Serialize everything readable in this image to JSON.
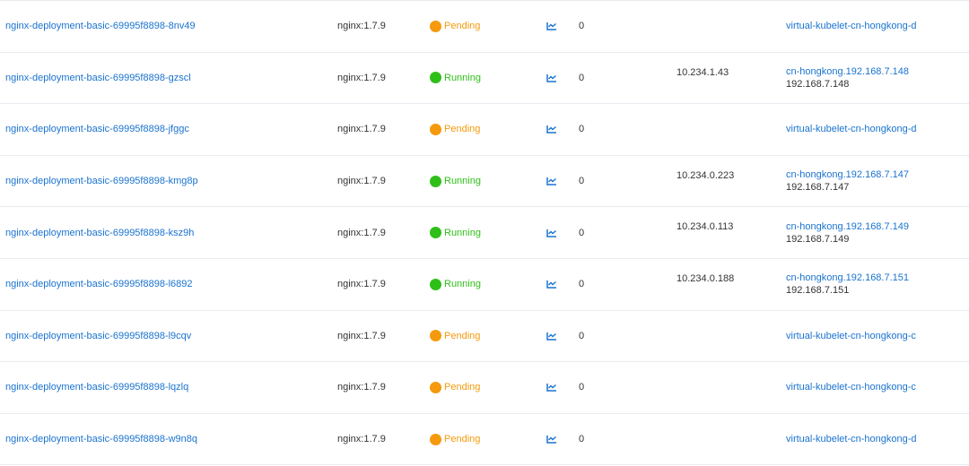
{
  "colors": {
    "link": "#1a73d0",
    "running": "#2fbf19",
    "pending": "#f59a0c"
  },
  "rows": [
    {
      "name": "nginx-deployment-basic-69995f8898-8nv49",
      "image": "nginx:1.7.9",
      "status": "Pending",
      "monitor_icon": "chart-line-icon",
      "restarts": "0",
      "pod_ip": "",
      "node": "virtual-kubelet-cn-hongkong-d",
      "node_ip": ""
    },
    {
      "name": "nginx-deployment-basic-69995f8898-gzscl",
      "image": "nginx:1.7.9",
      "status": "Running",
      "monitor_icon": "chart-line-icon",
      "restarts": "0",
      "pod_ip": "10.234.1.43",
      "node": "cn-hongkong.192.168.7.148",
      "node_ip": "192.168.7.148"
    },
    {
      "name": "nginx-deployment-basic-69995f8898-jfggc",
      "image": "nginx:1.7.9",
      "status": "Pending",
      "monitor_icon": "chart-line-icon",
      "restarts": "0",
      "pod_ip": "",
      "node": "virtual-kubelet-cn-hongkong-d",
      "node_ip": ""
    },
    {
      "name": "nginx-deployment-basic-69995f8898-kmg8p",
      "image": "nginx:1.7.9",
      "status": "Running",
      "monitor_icon": "chart-line-icon",
      "restarts": "0",
      "pod_ip": "10.234.0.223",
      "node": "cn-hongkong.192.168.7.147",
      "node_ip": "192.168.7.147"
    },
    {
      "name": "nginx-deployment-basic-69995f8898-ksz9h",
      "image": "nginx:1.7.9",
      "status": "Running",
      "monitor_icon": "chart-line-icon",
      "restarts": "0",
      "pod_ip": "10.234.0.113",
      "node": "cn-hongkong.192.168.7.149",
      "node_ip": "192.168.7.149"
    },
    {
      "name": "nginx-deployment-basic-69995f8898-l6892",
      "image": "nginx:1.7.9",
      "status": "Running",
      "monitor_icon": "chart-line-icon",
      "restarts": "0",
      "pod_ip": "10.234.0.188",
      "node": "cn-hongkong.192.168.7.151",
      "node_ip": "192.168.7.151"
    },
    {
      "name": "nginx-deployment-basic-69995f8898-l9cqv",
      "image": "nginx:1.7.9",
      "status": "Pending",
      "monitor_icon": "chart-line-icon",
      "restarts": "0",
      "pod_ip": "",
      "node": "virtual-kubelet-cn-hongkong-c",
      "node_ip": ""
    },
    {
      "name": "nginx-deployment-basic-69995f8898-lqzlq",
      "image": "nginx:1.7.9",
      "status": "Pending",
      "monitor_icon": "chart-line-icon",
      "restarts": "0",
      "pod_ip": "",
      "node": "virtual-kubelet-cn-hongkong-c",
      "node_ip": ""
    },
    {
      "name": "nginx-deployment-basic-69995f8898-w9n8q",
      "image": "nginx:1.7.9",
      "status": "Pending",
      "monitor_icon": "chart-line-icon",
      "restarts": "0",
      "pod_ip": "",
      "node": "virtual-kubelet-cn-hongkong-d",
      "node_ip": ""
    }
  ]
}
